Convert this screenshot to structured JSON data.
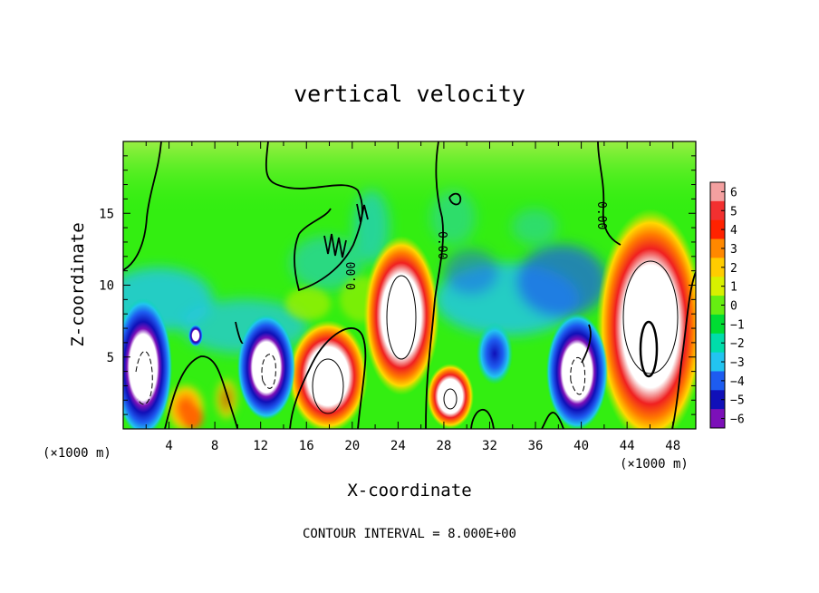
{
  "chart_data": {
    "type": "heatmap",
    "title": "vertical velocity",
    "xlabel": "X-coordinate",
    "ylabel": "Z-coordinate",
    "x_unit": "(×1000 m)",
    "y_unit": "(×1000 m)",
    "footer": "CONTOUR INTERVAL = 8.000E+00",
    "xlim": [
      0,
      50
    ],
    "ylim": [
      0,
      20
    ],
    "xticks": [
      "4",
      "8",
      "12",
      "16",
      "20",
      "24",
      "28",
      "32",
      "36",
      "40",
      "44",
      "48"
    ],
    "yticks": [
      "5",
      "10",
      "15"
    ],
    "colorbar": {
      "labels": [
        "6",
        "5",
        "4",
        "3",
        "2",
        "1",
        "0",
        "−1",
        "−2",
        "−3",
        "−4",
        "−5",
        "−6"
      ],
      "colors": [
        "#f4a0a0",
        "#f23030",
        "#ff2200",
        "#ff8800",
        "#ffcc00",
        "#d8f000",
        "#66ee11",
        "#00dd33",
        "#00ddaa",
        "#22c4f0",
        "#1d5cf0",
        "#1010b8",
        "#7c10b8"
      ]
    },
    "contour_labels": [
      "0.00",
      "0.00",
      "0.00"
    ],
    "background_color": "#33ee11",
    "features": [
      {
        "kind": "updraft",
        "x": 18,
        "z": 3.5,
        "peak": 8
      },
      {
        "kind": "updraft",
        "x": 24.5,
        "z": 7.5,
        "peak": 8
      },
      {
        "kind": "updraft",
        "x": 29,
        "z": 2.5,
        "peak": 6
      },
      {
        "kind": "updraft",
        "x": 46,
        "z": 7.5,
        "peak": 16
      },
      {
        "kind": "updraft",
        "x": 6,
        "z": 1.5,
        "peak": 4
      },
      {
        "kind": "downdraft",
        "x": 1.5,
        "z": 5,
        "peak": -8
      },
      {
        "kind": "downdraft",
        "x": 12.5,
        "z": 5,
        "peak": -8
      },
      {
        "kind": "downdraft",
        "x": 38.5,
        "z": 5,
        "peak": -8
      },
      {
        "kind": "downdraft",
        "x": 32.5,
        "z": 5.5,
        "peak": -6
      }
    ]
  }
}
